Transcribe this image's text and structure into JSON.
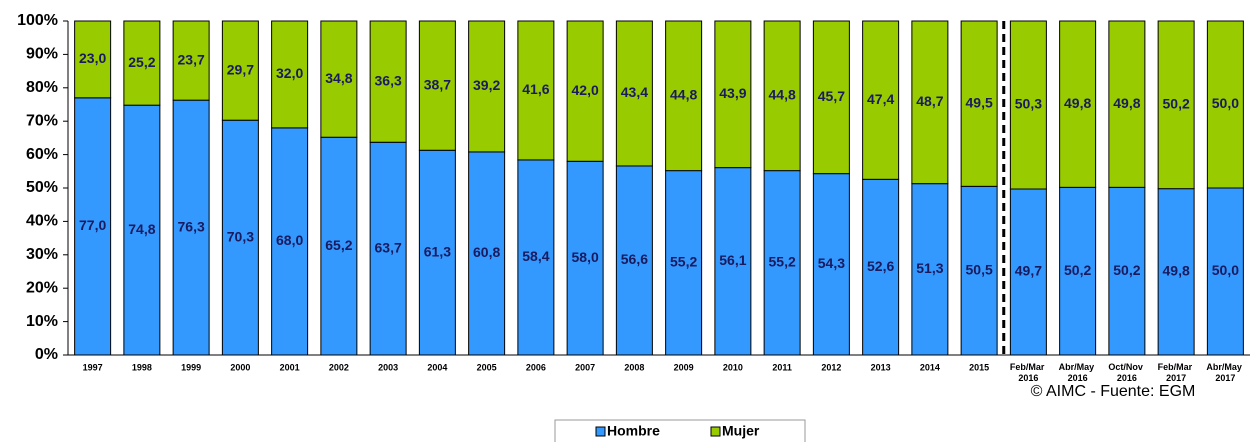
{
  "chart_data": {
    "type": "stacked_bar",
    "categories": [
      "1997",
      "1998",
      "1999",
      "2000",
      "2001",
      "2002",
      "2003",
      "2004",
      "2005",
      "2006",
      "2007",
      "2008",
      "2009",
      "2010",
      "2011",
      "2012",
      "2013",
      "2014",
      "2015",
      "Feb/Mar 2016",
      "Abr/May 2016",
      "Oct/Nov 2016",
      "Feb/Mar 2017",
      "Abr/May 2017"
    ],
    "series": [
      {
        "name": "Hombre",
        "color": "#3399ff",
        "values": [
          77.0,
          74.8,
          76.3,
          70.3,
          68.0,
          65.2,
          63.7,
          61.3,
          60.8,
          58.4,
          58.0,
          56.6,
          55.2,
          56.1,
          55.2,
          54.3,
          52.6,
          51.3,
          50.5,
          49.7,
          50.2,
          50.2,
          49.8,
          50.0
        ],
        "value_labels": [
          "77,0",
          "74,8",
          "76,3",
          "70,3",
          "68,0",
          "65,2",
          "63,7",
          "61,3",
          "60,8",
          "58,4",
          "58,0",
          "56,6",
          "55,2",
          "56,1",
          "55,2",
          "54,3",
          "52,6",
          "51,3",
          "50,5",
          "49,7",
          "50,2",
          "50,2",
          "49,8",
          "50,0"
        ]
      },
      {
        "name": "Mujer",
        "color": "#99cc00",
        "values": [
          23.0,
          25.2,
          23.7,
          29.7,
          32.0,
          34.8,
          36.3,
          38.7,
          39.2,
          41.6,
          42.0,
          43.4,
          44.8,
          43.9,
          44.8,
          45.7,
          47.4,
          48.7,
          49.5,
          50.3,
          49.8,
          49.8,
          50.2,
          50.0
        ],
        "value_labels": [
          "23,0",
          "25,2",
          "23,7",
          "29,7",
          "32,0",
          "34,8",
          "36,3",
          "38,7",
          "39,2",
          "41,6",
          "42,0",
          "43,4",
          "44,8",
          "43,9",
          "44,8",
          "45,7",
          "47,4",
          "48,7",
          "49,5",
          "50,3",
          "49,8",
          "49,8",
          "50,2",
          "50,0"
        ]
      }
    ],
    "ylim": [
      0,
      100
    ],
    "yticks": [
      {
        "value": 0,
        "label": "0%"
      },
      {
        "value": 10,
        "label": "10%"
      },
      {
        "value": 20,
        "label": "20%"
      },
      {
        "value": 30,
        "label": "30%"
      },
      {
        "value": 40,
        "label": "40%"
      },
      {
        "value": 50,
        "label": "50%"
      },
      {
        "value": 60,
        "label": "60%"
      },
      {
        "value": 70,
        "label": "70%"
      },
      {
        "value": 80,
        "label": "80%"
      },
      {
        "value": 90,
        "label": "90%"
      },
      {
        "value": 100,
        "label": "100%"
      }
    ],
    "grid": false,
    "legend": "bottom",
    "source": "© AIMC - Fuente: EGM"
  }
}
